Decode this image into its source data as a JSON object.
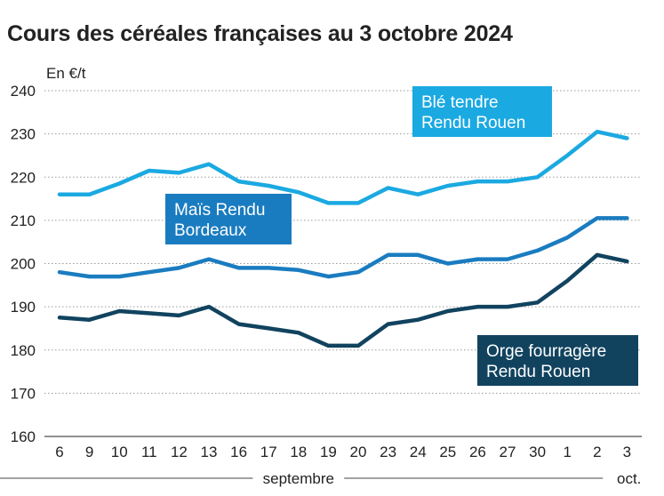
{
  "title": "Cours des céréales françaises au 3 octobre 2024",
  "chart_data": {
    "type": "line",
    "title": "Cours des céréales françaises au 3 octobre 2024",
    "ylabel": "En €/t",
    "xlabel": "",
    "ylim": [
      160,
      240
    ],
    "yticks": [
      160,
      170,
      180,
      190,
      200,
      210,
      220,
      230,
      240
    ],
    "grid": "horizontal, dotted",
    "categories": [
      "6",
      "9",
      "10",
      "11",
      "12",
      "13",
      "16",
      "17",
      "18",
      "19",
      "20",
      "23",
      "24",
      "25",
      "26",
      "27",
      "30",
      "1",
      "2",
      "3"
    ],
    "month_labels": [
      {
        "label": "septembre",
        "from": "6",
        "to": "30"
      },
      {
        "label": "oct.",
        "from": "1",
        "to": "3"
      }
    ],
    "series": [
      {
        "name": "Blé tendre Rendu Rouen",
        "color": "#1ba9e1",
        "values": [
          216,
          216,
          218.5,
          221.5,
          221,
          223,
          219,
          218,
          216.5,
          214,
          214,
          217.5,
          216,
          218,
          219,
          219,
          220,
          225,
          230.5,
          229
        ]
      },
      {
        "name": "Maïs Rendu Bordeaux",
        "color": "#1a7cc0",
        "values": [
          198,
          197,
          197,
          198,
          199,
          201,
          199,
          199,
          198.5,
          197,
          198,
          202,
          202,
          200,
          201,
          201,
          203,
          206,
          210.5,
          210.5
        ]
      },
      {
        "name": "Orge fourragère Rendu Rouen",
        "color": "#11435f",
        "values": [
          187.5,
          187,
          189,
          188.5,
          188,
          190,
          186,
          185,
          184,
          181,
          181,
          186,
          187,
          189,
          190,
          190,
          191,
          196,
          202,
          200.5
        ]
      }
    ],
    "annotations": [
      {
        "lines": [
          "Blé tendre",
          "Rendu Rouen"
        ],
        "series": 0
      },
      {
        "lines": [
          "Maïs Rendu",
          "Bordeaux"
        ],
        "series": 1
      },
      {
        "lines": [
          "Orge fourragère",
          "Rendu Rouen"
        ],
        "series": 2
      }
    ]
  }
}
